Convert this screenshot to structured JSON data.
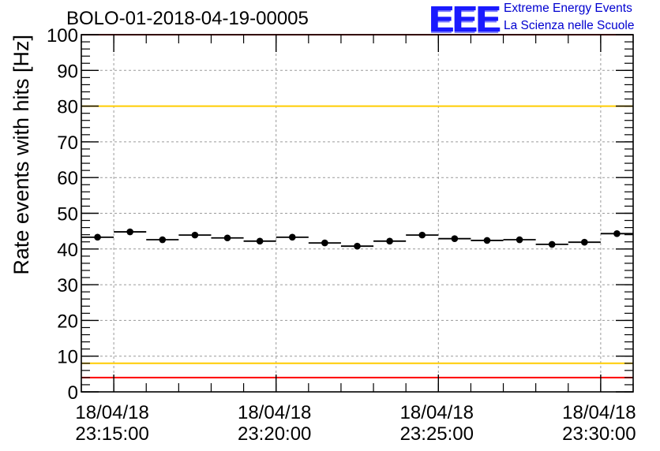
{
  "title": "BOLO-01-2018-04-19-00005",
  "logo": {
    "mark": "EEE",
    "line1": "Extreme Energy Events",
    "line2": "La Scienza nelle Scuole"
  },
  "colors": {
    "threshold_red": "#ff0000",
    "threshold_yellow": "#ffcc00",
    "marker": "#000000",
    "grid": "#9a9a9a"
  },
  "chart_data": {
    "type": "scatter",
    "ylabel": "Rate events with hits [Hz]",
    "ylim": [
      0,
      100
    ],
    "y_ticks": [
      "0",
      "10",
      "20",
      "30",
      "40",
      "50",
      "60",
      "70",
      "80",
      "90",
      "100"
    ],
    "xlim": [
      "2018-04-18 23:14:00",
      "2018-04-18 23:31:00"
    ],
    "x_ticks": [
      {
        "date": "18/04/18",
        "time": "23:15:00"
      },
      {
        "date": "18/04/18",
        "time": "23:20:00"
      },
      {
        "date": "18/04/18",
        "time": "23:25:00"
      },
      {
        "date": "18/04/18",
        "time": "23:30:00"
      }
    ],
    "grid": true,
    "bin_width_seconds": 60,
    "series": [
      {
        "x": [
          "2018-04-18 23:14:30",
          "2018-04-18 23:15:30",
          "2018-04-18 23:16:30",
          "2018-04-18 23:17:30",
          "2018-04-18 23:18:30",
          "2018-04-18 23:19:30",
          "2018-04-18 23:20:30",
          "2018-04-18 23:21:30",
          "2018-04-18 23:22:30",
          "2018-04-18 23:23:30",
          "2018-04-18 23:24:30",
          "2018-04-18 23:25:30",
          "2018-04-18 23:26:30",
          "2018-04-18 23:27:30",
          "2018-04-18 23:28:30",
          "2018-04-18 23:29:30",
          "2018-04-18 23:30:30"
        ],
        "y": [
          43.3,
          44.8,
          42.6,
          43.9,
          43.1,
          42.2,
          43.3,
          41.7,
          40.8,
          42.2,
          43.9,
          42.9,
          42.4,
          42.6,
          41.3,
          41.9,
          44.3
        ]
      }
    ],
    "thresholds": [
      {
        "value": 100,
        "color": "red"
      },
      {
        "value": 80,
        "color": "yellow"
      },
      {
        "value": 8,
        "color": "yellow"
      },
      {
        "value": 4,
        "color": "red"
      }
    ]
  }
}
